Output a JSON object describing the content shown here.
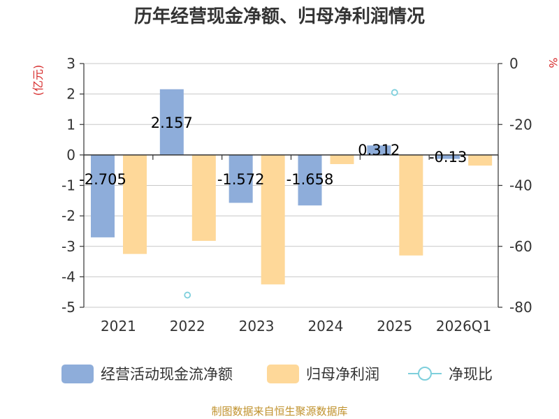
{
  "colors": {
    "cashflow": "#8eadda",
    "profit": "#fed899",
    "ratio": "#7ecfdc",
    "unit_label": "#d62b2b",
    "source": "#c0922d",
    "axis": "#333333",
    "grid": "#c8c8c8"
  },
  "chart_data": {
    "type": "bar",
    "title": "历年经营现金净额、归母净利润情况",
    "categories": [
      "2021",
      "2022",
      "2023",
      "2024",
      "2025",
      "2026Q1"
    ],
    "y_left": {
      "label": "(亿元)",
      "range": [
        -5,
        3
      ],
      "ticks": [
        "3",
        "2",
        "1",
        "0",
        "-1",
        "-2",
        "-3",
        "-4",
        "-5"
      ]
    },
    "y_right": {
      "label": "%",
      "range": [
        -80,
        0
      ],
      "ticks": [
        "0",
        "-20",
        "-40",
        "-60",
        "-80"
      ]
    },
    "series": [
      {
        "name": "经营活动现金流净额",
        "type": "bar",
        "axis": "left",
        "values": [
          -2.705,
          2.157,
          -1.572,
          -1.658,
          0.312,
          -0.13
        ],
        "labels": [
          "-2.705",
          "2.157",
          "-1.572",
          "-1.658",
          "0.312",
          "-0.13"
        ]
      },
      {
        "name": "归母净利润",
        "type": "bar",
        "axis": "left",
        "values": [
          -3.25,
          -2.82,
          -4.25,
          -0.3,
          -3.3,
          -0.35
        ]
      },
      {
        "name": "净现比",
        "type": "scatter",
        "axis": "right",
        "values": [
          null,
          -76,
          null,
          null,
          -9.5,
          null
        ]
      }
    ],
    "grid": true,
    "legend": "bottom",
    "source": "制图数据来自恒生聚源数据库"
  }
}
